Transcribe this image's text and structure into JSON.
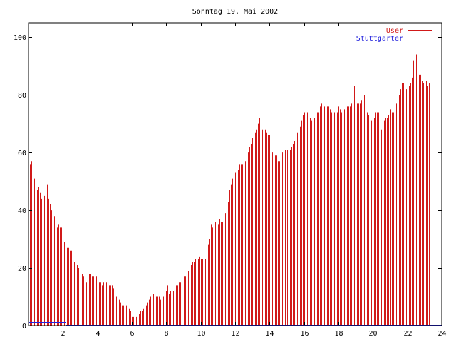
{
  "chart_data": {
    "type": "bar",
    "title": "Sonntag 19. Mai 2002",
    "xlabel": "",
    "ylabel": "",
    "xlim": [
      0,
      24
    ],
    "ylim": [
      0,
      105
    ],
    "grid": false,
    "legend_position": "top-right",
    "x_ticks": [
      "2",
      "4",
      "6",
      "8",
      "10",
      "12",
      "14",
      "16",
      "18",
      "20",
      "22",
      "24"
    ],
    "y_ticks": [
      "0",
      "20",
      "40",
      "60",
      "80",
      "100"
    ],
    "bin_minutes": 5,
    "series": [
      {
        "name": "User",
        "color": "#d11919",
        "style": "impulses",
        "values": [
          57,
          56,
          57,
          54,
          51,
          48,
          47,
          48,
          46,
          44,
          45,
          45,
          46,
          49,
          44,
          42,
          40,
          38,
          38,
          35,
          34,
          35,
          34,
          34,
          32,
          29,
          28,
          27,
          27,
          26,
          26,
          23,
          22,
          21,
          21,
          20,
          20,
          18,
          17,
          16,
          15,
          17,
          18,
          18,
          17,
          17,
          17,
          17,
          16,
          15,
          15,
          14,
          15,
          14,
          15,
          15,
          14,
          14,
          14,
          13,
          10,
          10,
          10,
          9,
          8,
          7,
          7,
          7,
          7,
          7,
          6,
          5,
          3,
          3,
          3,
          3,
          4,
          4,
          5,
          5,
          6,
          7,
          7,
          8,
          9,
          10,
          10,
          11,
          10,
          10,
          10,
          10,
          9,
          9,
          10,
          11,
          12,
          14,
          11,
          12,
          11,
          12,
          13,
          14,
          14,
          15,
          15,
          16,
          17,
          17,
          18,
          19,
          20,
          21,
          22,
          22,
          23,
          25,
          23,
          24,
          23,
          23,
          24,
          23,
          24,
          28,
          30,
          35,
          34,
          34,
          36,
          35,
          35,
          37,
          36,
          36,
          38,
          39,
          41,
          43,
          47,
          49,
          51,
          51,
          53,
          54,
          54,
          56,
          56,
          56,
          56,
          57,
          58,
          60,
          62,
          63,
          65,
          66,
          67,
          68,
          70,
          72,
          73,
          68,
          71,
          68,
          67,
          66,
          66,
          61,
          60,
          59,
          59,
          59,
          57,
          57,
          56,
          60,
          60,
          61,
          61,
          62,
          61,
          62,
          63,
          64,
          66,
          67,
          67,
          69,
          71,
          73,
          74,
          76,
          74,
          73,
          72,
          71,
          72,
          72,
          74,
          74,
          74,
          76,
          77,
          79,
          76,
          76,
          76,
          76,
          75,
          74,
          74,
          74,
          76,
          74,
          76,
          75,
          74,
          74,
          75,
          75,
          76,
          76,
          76,
          77,
          78,
          83,
          78,
          77,
          77,
          77,
          78,
          79,
          80,
          76,
          74,
          73,
          72,
          71,
          72,
          72,
          74,
          74,
          74,
          69,
          68,
          70,
          71,
          72,
          72,
          73,
          75,
          74,
          74,
          76,
          77,
          78,
          80,
          82,
          84,
          84,
          83,
          82,
          81,
          83,
          84,
          86,
          92,
          92,
          94,
          88,
          87,
          87,
          85,
          84,
          82,
          85,
          83,
          84
        ]
      },
      {
        "name": "Stuttgarter",
        "color": "#2222dd",
        "style": "line",
        "segments": [
          {
            "x_start": 0,
            "x_end": 2.17,
            "value": 1
          },
          {
            "x_start": 2.17,
            "x_end": 24,
            "value": 0
          }
        ]
      }
    ]
  }
}
